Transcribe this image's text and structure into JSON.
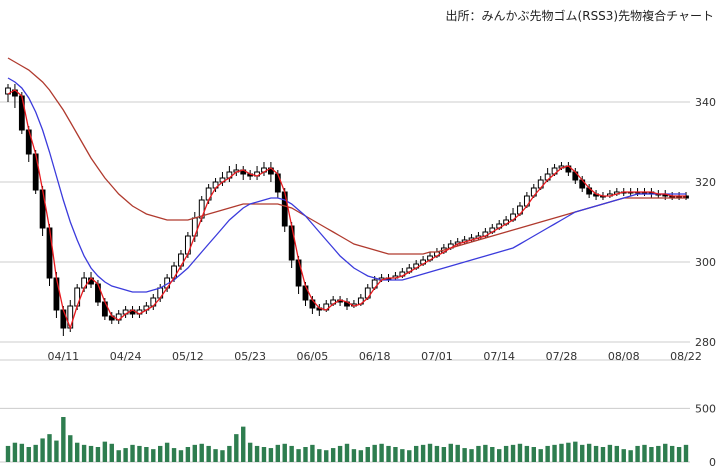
{
  "source_title": "出所：みんかぶ先物ゴム(RSS3)先物複合チャート",
  "colors": {
    "candle": "#000000",
    "ma_short": "#e8191e",
    "ma_mid": "#3b3bdc",
    "ma_long": "#b03a2e",
    "volume": "#2e7d4f",
    "grid": "#cccccc"
  },
  "chart_data": {
    "type": "candlestick",
    "x_tick_labels": [
      "04/11",
      "04/24",
      "05/12",
      "05/23",
      "06/05",
      "06/18",
      "07/01",
      "07/14",
      "07/28",
      "08/08",
      "08/22"
    ],
    "x_tick_index": [
      8,
      17,
      26,
      35,
      44,
      53,
      62,
      71,
      80,
      89,
      98
    ],
    "price_axis": {
      "ticks": [
        280,
        300,
        320,
        340
      ],
      "ylim": [
        278,
        355
      ]
    },
    "volume_axis": {
      "ticks": [
        0,
        500
      ],
      "ylim": [
        0,
        840
      ]
    },
    "ohlc": [
      [
        342.0,
        343.5,
        340.0,
        344.5
      ],
      [
        343.0,
        341.5,
        338.5,
        344.5
      ],
      [
        341.5,
        333.0,
        332.0,
        342.5
      ],
      [
        333.0,
        327.0,
        325.0,
        334.0
      ],
      [
        327.0,
        318.0,
        317.0,
        328.0
      ],
      [
        318.0,
        308.5,
        306.5,
        319.0
      ],
      [
        308.5,
        296.0,
        294.0,
        309.5
      ],
      [
        296.0,
        288.0,
        286.0,
        297.5
      ],
      [
        288.0,
        283.5,
        281.5,
        289.0
      ],
      [
        283.5,
        289.0,
        282.5,
        290.5
      ],
      [
        289.0,
        293.5,
        288.0,
        294.5
      ],
      [
        293.5,
        296.0,
        292.5,
        297.5
      ],
      [
        296.0,
        294.5,
        293.5,
        297.5
      ],
      [
        294.5,
        290.0,
        289.0,
        295.5
      ],
      [
        290.0,
        286.5,
        285.5,
        291.0
      ],
      [
        286.5,
        285.5,
        284.5,
        287.5
      ],
      [
        285.5,
        287.0,
        284.5,
        288.0
      ],
      [
        287.0,
        288.0,
        286.0,
        289.0
      ],
      [
        288.0,
        287.0,
        286.0,
        289.0
      ],
      [
        287.0,
        288.0,
        286.0,
        289.0
      ],
      [
        288.0,
        289.0,
        287.0,
        290.0
      ],
      [
        289.0,
        291.0,
        288.0,
        292.0
      ],
      [
        291.0,
        293.5,
        290.0,
        294.5
      ],
      [
        293.5,
        296.0,
        292.5,
        297.0
      ],
      [
        296.0,
        299.0,
        295.0,
        300.0
      ],
      [
        299.0,
        302.0,
        298.0,
        303.0
      ],
      [
        302.0,
        306.5,
        301.0,
        307.5
      ],
      [
        306.5,
        311.0,
        305.0,
        312.5
      ],
      [
        311.0,
        315.5,
        310.0,
        316.5
      ],
      [
        315.5,
        318.5,
        314.5,
        319.5
      ],
      [
        318.5,
        320.0,
        317.5,
        321.0
      ],
      [
        320.0,
        321.0,
        319.0,
        322.5
      ],
      [
        321.0,
        322.5,
        320.0,
        324.0
      ],
      [
        322.5,
        323.0,
        321.5,
        324.5
      ],
      [
        323.0,
        322.0,
        320.5,
        324.0
      ],
      [
        322.0,
        321.5,
        320.5,
        323.0
      ],
      [
        321.5,
        322.5,
        320.5,
        324.0
      ],
      [
        322.5,
        323.5,
        321.5,
        325.0
      ],
      [
        323.5,
        322.0,
        320.0,
        325.0
      ],
      [
        322.0,
        317.5,
        316.0,
        323.0
      ],
      [
        317.5,
        309.0,
        307.5,
        318.5
      ],
      [
        309.0,
        300.5,
        298.5,
        310.0
      ],
      [
        300.5,
        294.0,
        292.0,
        301.5
      ],
      [
        294.0,
        290.5,
        289.0,
        295.0
      ],
      [
        290.5,
        288.5,
        287.0,
        291.5
      ],
      [
        288.5,
        288.0,
        286.5,
        289.5
      ],
      [
        288.0,
        289.5,
        287.5,
        290.5
      ],
      [
        289.5,
        290.5,
        289.0,
        291.5
      ],
      [
        290.5,
        290.0,
        289.0,
        291.5
      ],
      [
        290.0,
        289.0,
        288.0,
        291.0
      ],
      [
        289.0,
        289.5,
        288.5,
        290.5
      ],
      [
        289.5,
        291.0,
        289.0,
        292.0
      ],
      [
        291.0,
        293.5,
        290.5,
        294.5
      ],
      [
        293.5,
        295.5,
        293.0,
        296.5
      ],
      [
        295.5,
        296.0,
        295.0,
        297.0
      ],
      [
        296.0,
        296.0,
        295.0,
        297.0
      ],
      [
        296.0,
        296.5,
        295.5,
        297.5
      ],
      [
        296.5,
        297.5,
        296.0,
        298.5
      ],
      [
        297.5,
        298.5,
        297.0,
        299.5
      ],
      [
        298.5,
        299.5,
        298.0,
        300.5
      ],
      [
        299.5,
        300.5,
        299.0,
        301.5
      ],
      [
        300.5,
        301.5,
        300.0,
        302.5
      ],
      [
        301.5,
        302.5,
        301.0,
        303.5
      ],
      [
        302.5,
        303.5,
        302.0,
        304.5
      ],
      [
        303.5,
        304.5,
        303.0,
        305.5
      ],
      [
        304.5,
        305.0,
        304.0,
        306.0
      ],
      [
        305.0,
        305.5,
        304.5,
        306.5
      ],
      [
        305.5,
        306.0,
        305.0,
        307.0
      ],
      [
        306.0,
        306.5,
        305.5,
        307.5
      ],
      [
        306.5,
        307.5,
        306.0,
        308.5
      ],
      [
        307.5,
        308.5,
        307.0,
        309.5
      ],
      [
        308.5,
        309.5,
        308.0,
        310.5
      ],
      [
        309.5,
        310.5,
        309.0,
        311.5
      ],
      [
        310.5,
        312.0,
        310.0,
        313.5
      ],
      [
        312.0,
        314.0,
        311.5,
        315.0
      ],
      [
        314.0,
        316.5,
        313.5,
        317.5
      ],
      [
        316.5,
        318.5,
        316.0,
        319.5
      ],
      [
        318.5,
        320.5,
        318.0,
        321.5
      ],
      [
        320.5,
        322.0,
        320.0,
        323.5
      ],
      [
        322.0,
        323.5,
        321.5,
        324.5
      ],
      [
        323.5,
        324.0,
        323.0,
        325.0
      ],
      [
        324.0,
        322.5,
        321.5,
        325.0
      ],
      [
        322.5,
        320.5,
        319.5,
        323.5
      ],
      [
        320.5,
        318.5,
        317.5,
        321.5
      ],
      [
        318.5,
        317.0,
        316.0,
        319.5
      ],
      [
        317.0,
        316.5,
        315.5,
        318.0
      ],
      [
        316.5,
        316.5,
        315.5,
        317.5
      ],
      [
        316.5,
        317.0,
        316.0,
        318.0
      ],
      [
        317.0,
        317.5,
        316.5,
        318.5
      ],
      [
        317.5,
        317.5,
        316.5,
        318.5
      ],
      [
        317.5,
        317.5,
        316.5,
        318.5
      ],
      [
        317.5,
        317.5,
        316.5,
        318.5
      ],
      [
        317.5,
        317.5,
        316.5,
        318.5
      ],
      [
        317.5,
        317.0,
        316.0,
        318.5
      ],
      [
        317.0,
        317.0,
        316.0,
        318.0
      ],
      [
        317.0,
        316.5,
        315.5,
        318.0
      ],
      [
        316.5,
        316.5,
        315.5,
        317.5
      ],
      [
        316.5,
        316.5,
        315.5,
        317.5
      ],
      [
        316.5,
        316.0,
        315.5,
        317.5
      ]
    ],
    "ma_short": [
      342.0,
      343.0,
      341.5,
      333.0,
      327.0,
      318.0,
      308.5,
      296.0,
      288.0,
      283.5,
      289.0,
      293.5,
      296.0,
      294.5,
      290.0,
      286.5,
      285.5,
      287.0,
      288.0,
      287.0,
      288.0,
      289.0,
      291.0,
      293.5,
      296.0,
      299.0,
      302.0,
      306.5,
      311.0,
      315.5,
      318.5,
      320.0,
      321.0,
      322.5,
      323.0,
      322.0,
      321.5,
      322.5,
      323.5,
      322.0,
      317.5,
      309.0,
      300.5,
      294.0,
      290.5,
      288.5,
      288.0,
      289.5,
      290.5,
      290.0,
      289.0,
      289.5,
      291.0,
      293.5,
      295.5,
      296.0,
      296.0,
      296.5,
      297.5,
      298.5,
      299.5,
      300.5,
      301.5,
      302.5,
      303.5,
      304.5,
      305.0,
      305.5,
      306.0,
      306.5,
      307.5,
      308.5,
      309.5,
      310.5,
      312.0,
      314.0,
      316.5,
      318.5,
      320.5,
      322.0,
      323.5,
      324.0,
      322.5,
      320.5,
      318.5,
      317.0,
      316.5,
      316.5,
      317.0,
      317.5,
      317.5,
      317.5,
      317.5,
      317.5,
      317.0,
      317.0,
      316.5,
      316.5,
      316.5
    ],
    "ma_mid": [
      346.0,
      345.0,
      343.5,
      341.0,
      337.5,
      333.0,
      327.5,
      321.5,
      315.5,
      310.0,
      305.5,
      301.5,
      298.5,
      296.5,
      295.0,
      294.0,
      293.5,
      293.0,
      292.5,
      292.5,
      292.5,
      293.0,
      293.5,
      294.5,
      295.5,
      297.0,
      298.5,
      300.5,
      302.5,
      304.5,
      306.5,
      308.5,
      310.5,
      312.0,
      313.5,
      314.5,
      315.0,
      315.5,
      316.0,
      316.0,
      315.5,
      314.5,
      313.0,
      311.5,
      309.5,
      307.5,
      305.5,
      303.5,
      301.5,
      300.0,
      298.5,
      297.5,
      296.5,
      296.0,
      295.5,
      295.5,
      295.5,
      295.5,
      296.0,
      296.5,
      297.0,
      297.5,
      298.0,
      298.5,
      299.0,
      299.5,
      300.0,
      300.5,
      301.0,
      301.5,
      302.0,
      302.5,
      303.0,
      303.5,
      304.5,
      305.5,
      306.5,
      307.5,
      308.5,
      309.5,
      310.5,
      311.5,
      312.5,
      313.0,
      313.5,
      314.0,
      314.5,
      315.0,
      315.5,
      316.0,
      316.5,
      317.0,
      317.0,
      317.0,
      317.0,
      317.0,
      317.0,
      317.0,
      317.0
    ],
    "ma_long": [
      351.0,
      350.0,
      349.0,
      348.0,
      346.5,
      345.0,
      343.0,
      340.5,
      338.0,
      335.0,
      332.0,
      329.0,
      326.0,
      323.5,
      321.0,
      319.0,
      317.0,
      315.5,
      314.0,
      313.0,
      312.0,
      311.5,
      311.0,
      310.5,
      310.5,
      310.5,
      310.5,
      311.0,
      311.5,
      312.0,
      312.5,
      313.0,
      313.5,
      314.0,
      314.5,
      314.5,
      314.5,
      314.5,
      314.5,
      314.5,
      314.0,
      313.5,
      312.5,
      311.5,
      310.5,
      309.5,
      308.5,
      307.5,
      306.5,
      305.5,
      304.5,
      304.0,
      303.5,
      303.0,
      302.5,
      302.0,
      302.0,
      302.0,
      302.0,
      302.0,
      302.0,
      302.5,
      302.5,
      303.0,
      303.5,
      304.0,
      304.5,
      305.0,
      305.5,
      306.0,
      306.5,
      307.0,
      307.5,
      308.0,
      308.5,
      309.0,
      309.5,
      310.0,
      310.5,
      311.0,
      311.5,
      312.0,
      312.5,
      313.0,
      313.5,
      314.0,
      314.5,
      315.0,
      315.5,
      316.0,
      316.0,
      316.0,
      316.0,
      316.0,
      316.0,
      316.0,
      316.0,
      316.0,
      316.0
    ],
    "volume": [
      150,
      180,
      170,
      140,
      160,
      220,
      260,
      200,
      420,
      250,
      180,
      160,
      150,
      140,
      190,
      170,
      110,
      130,
      160,
      150,
      140,
      120,
      150,
      180,
      130,
      110,
      140,
      160,
      170,
      150,
      120,
      110,
      150,
      260,
      330,
      180,
      150,
      140,
      130,
      160,
      170,
      150,
      120,
      140,
      160,
      120,
      110,
      130,
      150,
      170,
      120,
      110,
      140,
      160,
      170,
      150,
      140,
      120,
      110,
      150,
      160,
      170,
      150,
      140,
      170,
      160,
      130,
      120,
      150,
      160,
      140,
      120,
      150,
      160,
      170,
      150,
      140,
      120,
      150,
      160,
      170,
      180,
      190,
      160,
      170,
      150,
      140,
      160,
      150,
      120,
      110,
      150,
      160,
      140,
      150,
      170,
      150,
      140,
      160
    ]
  }
}
